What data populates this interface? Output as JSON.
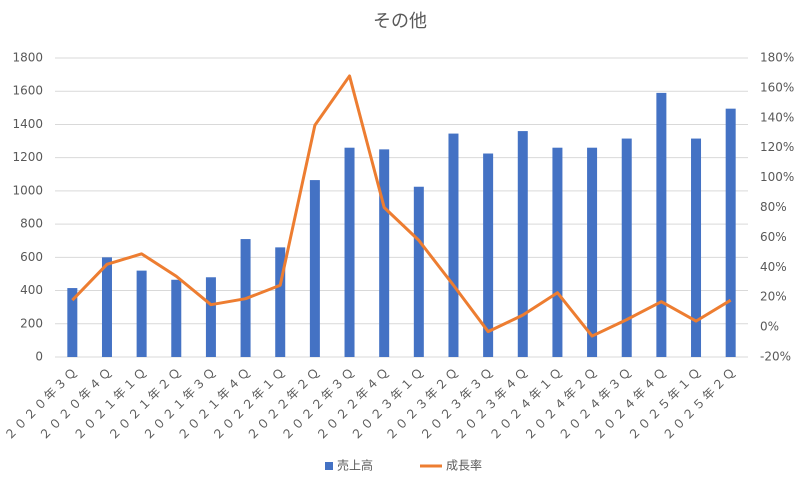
{
  "chart_data": {
    "type": "combo",
    "title": "その他",
    "categories": [
      "２０２０年３Ｑ",
      "２０２０年４Ｑ",
      "２０２１年１Ｑ",
      "２０２１年２Ｑ",
      "２０２１年３Ｑ",
      "２０２１年４Ｑ",
      "２０２２年１Ｑ",
      "２０２２年２Ｑ",
      "２０２２年３Ｑ",
      "２０２２年４Ｑ",
      "２０２３年１Ｑ",
      "２０２３年２Ｑ",
      "２０２３年３Ｑ",
      "２０２３年４Ｑ",
      "２０２４年１Ｑ",
      "２０２４年２Ｑ",
      "２０２４年３Ｑ",
      "２０２４年４Ｑ",
      "２０２５年１Ｑ",
      "２０２５年２Ｑ"
    ],
    "series": [
      {
        "name": "売上高",
        "type": "bar",
        "color": "#4472c4",
        "values": [
          415,
          600,
          520,
          465,
          480,
          710,
          660,
          1065,
          1260,
          1250,
          1025,
          1345,
          1225,
          1360,
          1260,
          1260,
          1315,
          1590,
          1315,
          1495
        ]
      },
      {
        "name": "成長率",
        "type": "line",
        "axis": "y2",
        "color": "#ed7d31",
        "values": [
          18,
          42,
          49,
          34,
          15,
          19,
          28,
          135,
          168,
          80,
          58,
          28,
          -3,
          8,
          23,
          -6,
          5,
          17,
          4,
          18
        ]
      }
    ],
    "ylim": [
      0,
      1800
    ],
    "yticks": [
      0,
      200,
      400,
      600,
      800,
      1000,
      1200,
      1400,
      1600,
      1800
    ],
    "y2lim": [
      -20,
      180
    ],
    "y2ticks": [
      {
        "value": -20,
        "label": "-20%"
      },
      {
        "value": 0,
        "label": "0%"
      },
      {
        "value": 20,
        "label": "20%"
      },
      {
        "value": 40,
        "label": "40%"
      },
      {
        "value": 60,
        "label": "60%"
      },
      {
        "value": 80,
        "label": "80%"
      },
      {
        "value": 100,
        "label": "100%"
      },
      {
        "value": 120,
        "label": "120%"
      },
      {
        "value": 140,
        "label": "140%"
      },
      {
        "value": 160,
        "label": "160%"
      },
      {
        "value": 180,
        "label": "180%"
      }
    ],
    "grid": true,
    "legend": "bottom"
  }
}
